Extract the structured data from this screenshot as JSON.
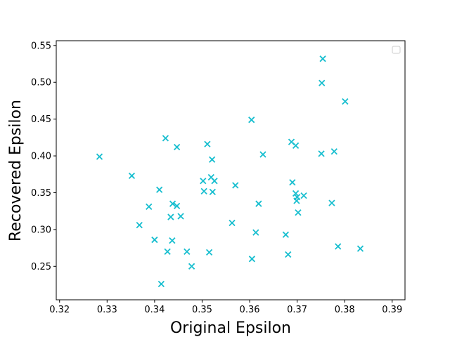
{
  "chart_data": {
    "type": "scatter",
    "xlabel": "Original Epsilon",
    "ylabel": "Recovered Epsilon",
    "xlim": [
      0.3193,
      0.3927
    ],
    "ylim": [
      0.2045,
      0.5565
    ],
    "xticks": [
      0.32,
      0.33,
      0.34,
      0.35,
      0.36,
      0.37,
      0.38,
      0.39
    ],
    "yticks": [
      0.25,
      0.3,
      0.35,
      0.4,
      0.45,
      0.5,
      0.55
    ],
    "xtick_labels": [
      "0.32",
      "0.33",
      "0.34",
      "0.35",
      "0.36",
      "0.37",
      "0.38",
      "0.39"
    ],
    "ytick_labels": [
      "0.25",
      "0.30",
      "0.35",
      "0.40",
      "0.45",
      "0.50",
      "0.55"
    ],
    "marker": "x",
    "grid": false,
    "legend_placement": "top-right",
    "colors": {
      "marker": "#17becf",
      "axis": "#000000",
      "background": "#ffffff"
    },
    "series": [
      {
        "points": [
          [
            0.3284,
            0.399
          ],
          [
            0.3352,
            0.373
          ],
          [
            0.3368,
            0.306
          ],
          [
            0.3388,
            0.331
          ],
          [
            0.34,
            0.286
          ],
          [
            0.341,
            0.354
          ],
          [
            0.3414,
            0.226
          ],
          [
            0.3423,
            0.424
          ],
          [
            0.3427,
            0.27
          ],
          [
            0.3434,
            0.317
          ],
          [
            0.3437,
            0.285
          ],
          [
            0.3438,
            0.335
          ],
          [
            0.3447,
            0.412
          ],
          [
            0.3447,
            0.332
          ],
          [
            0.3455,
            0.318
          ],
          [
            0.3468,
            0.27
          ],
          [
            0.3478,
            0.25
          ],
          [
            0.3502,
            0.366
          ],
          [
            0.3504,
            0.352
          ],
          [
            0.3511,
            0.416
          ],
          [
            0.3515,
            0.269
          ],
          [
            0.3519,
            0.371
          ],
          [
            0.3521,
            0.395
          ],
          [
            0.3522,
            0.351
          ],
          [
            0.3526,
            0.366
          ],
          [
            0.3563,
            0.309
          ],
          [
            0.357,
            0.36
          ],
          [
            0.3604,
            0.449
          ],
          [
            0.3605,
            0.26
          ],
          [
            0.3613,
            0.296
          ],
          [
            0.3619,
            0.335
          ],
          [
            0.3628,
            0.402
          ],
          [
            0.3676,
            0.293
          ],
          [
            0.3681,
            0.266
          ],
          [
            0.3688,
            0.419
          ],
          [
            0.369,
            0.364
          ],
          [
            0.3697,
            0.349
          ],
          [
            0.3697,
            0.414
          ],
          [
            0.3699,
            0.339
          ],
          [
            0.37,
            0.344
          ],
          [
            0.3702,
            0.323
          ],
          [
            0.3714,
            0.346
          ],
          [
            0.3751,
            0.403
          ],
          [
            0.3752,
            0.499
          ],
          [
            0.3754,
            0.532
          ],
          [
            0.3773,
            0.336
          ],
          [
            0.3778,
            0.406
          ],
          [
            0.3786,
            0.277
          ],
          [
            0.3801,
            0.474
          ],
          [
            0.3833,
            0.274
          ]
        ]
      }
    ]
  }
}
